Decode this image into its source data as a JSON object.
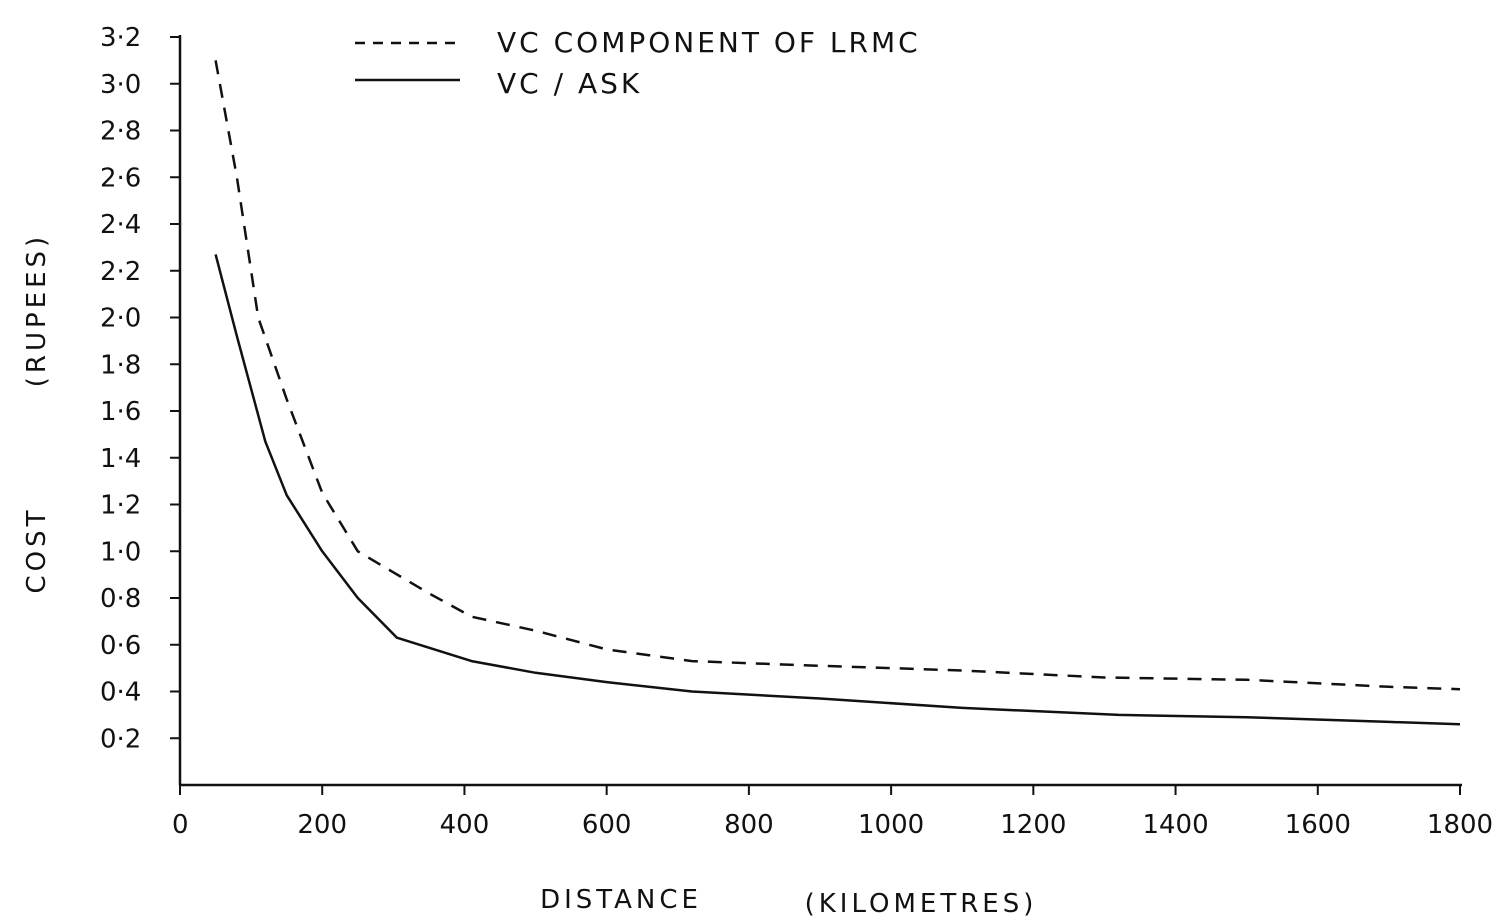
{
  "chart_data": {
    "type": "line",
    "title": "",
    "xlabel": "DISTANCE",
    "xlabel_unit": "(KILOMETRES)",
    "ylabel": "COST",
    "ylabel_unit": "(RUPEES)",
    "xlim": [
      0,
      1800
    ],
    "ylim": [
      0.0,
      3.2
    ],
    "x_ticks": [
      0,
      200,
      400,
      600,
      800,
      1000,
      1200,
      1400,
      1600,
      1800
    ],
    "x_tick_labels": [
      "0",
      "200",
      "400",
      "600",
      "800",
      "1000",
      "1200",
      "1400",
      "1600",
      "1800"
    ],
    "y_ticks": [
      0.2,
      0.4,
      0.6,
      0.8,
      1.0,
      1.2,
      1.4,
      1.6,
      1.8,
      2.0,
      2.2,
      2.4,
      2.6,
      2.8,
      3.0,
      3.2
    ],
    "y_tick_labels": [
      "0·2",
      "0·4",
      "0·6",
      "0·8",
      "1·0",
      "1·2",
      "1·4",
      "1·6",
      "1·8",
      "2·0",
      "2·2",
      "2·4",
      "2·6",
      "2·8",
      "3·0",
      "3·2"
    ],
    "grid": false,
    "legend_position": "top-center",
    "series": [
      {
        "name": "VC COMPONENT OF LRMC",
        "style": "dashed",
        "color": "#111111",
        "x": [
          50,
          80,
          110,
          150,
          200,
          250,
          300,
          350,
          410,
          500,
          600,
          720,
          900,
          1100,
          1300,
          1500,
          1700,
          1800
        ],
        "y": [
          3.1,
          2.6,
          2.0,
          1.65,
          1.25,
          1.0,
          0.91,
          0.82,
          0.72,
          0.66,
          0.58,
          0.53,
          0.51,
          0.49,
          0.46,
          0.45,
          0.42,
          0.41
        ]
      },
      {
        "name": "VC / ASK",
        "style": "solid",
        "color": "#111111",
        "x": [
          50,
          80,
          120,
          150,
          200,
          250,
          305,
          410,
          500,
          600,
          720,
          900,
          1100,
          1320,
          1500,
          1700,
          1800
        ],
        "y": [
          2.27,
          1.92,
          1.47,
          1.24,
          1.0,
          0.8,
          0.63,
          0.53,
          0.48,
          0.44,
          0.4,
          0.37,
          0.33,
          0.3,
          0.29,
          0.27,
          0.26
        ]
      }
    ]
  }
}
